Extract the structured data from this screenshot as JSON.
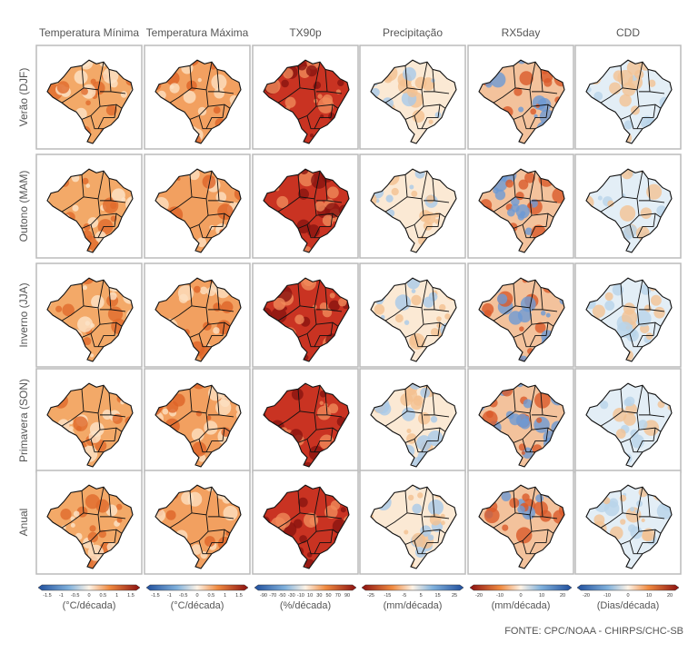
{
  "columns": [
    "Temperatura Mínima",
    "Temperatura Máxima",
    "TX90p",
    "Precipitação",
    "RX5day",
    "CDD"
  ],
  "rows": [
    "Verão (DJF)",
    "Outono (MAM)",
    "Inverno (JJA)",
    "Primavera (SON)",
    "Anual"
  ],
  "colorbars": [
    {
      "ticks": [
        "-1.5",
        "-1",
        "-0.5",
        "0",
        "0.5",
        "1",
        "1.5"
      ],
      "unit": "(°C/década)"
    },
    {
      "ticks": [
        "-1.5",
        "-1",
        "-0.5",
        "0",
        "0.5",
        "1",
        "1.5"
      ],
      "unit": "(°C/década)"
    },
    {
      "ticks": [
        "-90",
        "-70",
        "-50",
        "-30",
        "-10",
        "10",
        "30",
        "50",
        "70",
        "90"
      ],
      "unit": "(%/década)"
    },
    {
      "ticks": [
        "-25",
        "-15",
        "-5",
        "5",
        "15",
        "25"
      ],
      "unit": "(mm/década)"
    },
    {
      "ticks": [
        "-20",
        "-10",
        "0",
        "10",
        "20"
      ],
      "unit": "(mm/década)"
    },
    {
      "ticks": [
        "-20",
        "-10",
        "0",
        "10",
        "20"
      ],
      "unit": "(Dias/década)"
    }
  ],
  "source": "FONTE: CPC/NOAA - CHIRPS/CHC-SB"
}
